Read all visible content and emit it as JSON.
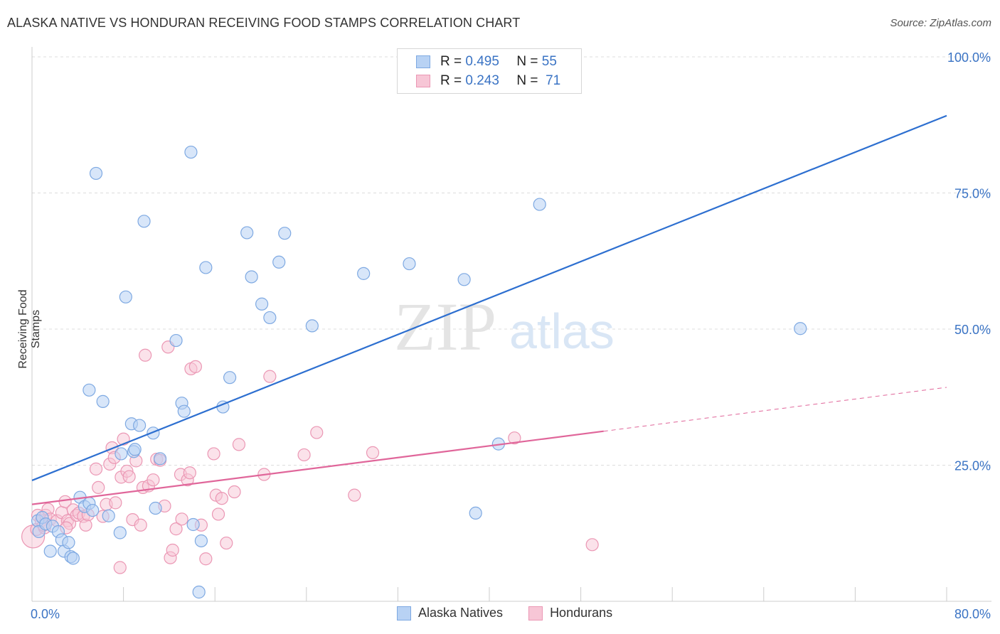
{
  "title": "ALASKA NATIVE VS HONDURAN RECEIVING FOOD STAMPS CORRELATION CHART",
  "source": "Source: ZipAtlas.com",
  "watermark": {
    "zip": "ZIP",
    "atlas": "atlas"
  },
  "legend_stats": [
    {
      "r_label": "R =",
      "r_value": "0.495",
      "n_label": "N =",
      "n_value": "55"
    },
    {
      "r_label": "R =",
      "r_value": "0.243",
      "n_label": "N =",
      "n_value": "71"
    }
  ],
  "colors": {
    "alaska_fill": "#b8d2f4",
    "alaska_stroke": "#7ea9e2",
    "alaska_line": "#2d6fd0",
    "honduran_fill": "#f7c6d6",
    "honduran_stroke": "#eb97b4",
    "honduran_line": "#e0669a",
    "axis_blue": "#3a73c4",
    "grid": "#dddddd"
  },
  "chart_data": {
    "type": "scatter",
    "title": "ALASKA NATIVE VS HONDURAN RECEIVING FOOD STAMPS CORRELATION CHART",
    "xlabel": "",
    "ylabel": "Receiving Food Stamps",
    "xlim": [
      0,
      80
    ],
    "ylim": [
      0,
      100
    ],
    "x_tick_labels": [
      "0.0%",
      "80.0%"
    ],
    "y_tick_labels": [
      "100.0%",
      "75.0%",
      "50.0%",
      "25.0%"
    ],
    "y_ticks": [
      100,
      75,
      50,
      25
    ],
    "grid": true,
    "legend_position": "bottom-center",
    "series": [
      {
        "name": "Alaska Natives",
        "r": 0.495,
        "n": 55,
        "trend": {
          "x": [
            0,
            80
          ],
          "y": [
            22.2,
            89.2
          ],
          "dashed_after": null
        },
        "points": [
          [
            0.5,
            14.8
          ],
          [
            0.6,
            12.8
          ],
          [
            0.9,
            15.4
          ],
          [
            1.2,
            14.2
          ],
          [
            1.6,
            9.2
          ],
          [
            1.8,
            13.8
          ],
          [
            2.3,
            12.8
          ],
          [
            2.6,
            11.3
          ],
          [
            2.8,
            9.2
          ],
          [
            3.2,
            10.8
          ],
          [
            3.4,
            8.2
          ],
          [
            3.6,
            7.9
          ],
          [
            4.2,
            19.1
          ],
          [
            4.6,
            17.4
          ],
          [
            5.0,
            18.0
          ],
          [
            5.3,
            16.7
          ],
          [
            5.6,
            78.6
          ],
          [
            6.2,
            36.7
          ],
          [
            6.7,
            15.7
          ],
          [
            7.7,
            12.6
          ],
          [
            8.2,
            55.9
          ],
          [
            8.7,
            32.6
          ],
          [
            8.9,
            27.5
          ],
          [
            9.0,
            27.9
          ],
          [
            9.4,
            32.3
          ],
          [
            9.8,
            69.8
          ],
          [
            10.6,
            30.9
          ],
          [
            10.8,
            17.1
          ],
          [
            11.2,
            26.2
          ],
          [
            12.6,
            47.9
          ],
          [
            13.1,
            36.4
          ],
          [
            13.3,
            34.9
          ],
          [
            13.9,
            82.5
          ],
          [
            14.1,
            14.1
          ],
          [
            14.6,
            1.7
          ],
          [
            14.8,
            11.1
          ],
          [
            15.2,
            61.3
          ],
          [
            16.7,
            35.7
          ],
          [
            17.3,
            41.1
          ],
          [
            18.8,
            67.7
          ],
          [
            19.2,
            59.6
          ],
          [
            20.1,
            54.6
          ],
          [
            20.8,
            52.1
          ],
          [
            21.6,
            62.3
          ],
          [
            22.1,
            67.6
          ],
          [
            24.5,
            50.6
          ],
          [
            29.0,
            60.2
          ],
          [
            33.0,
            62.0
          ],
          [
            37.8,
            59.1
          ],
          [
            38.8,
            16.2
          ],
          [
            40.8,
            28.9
          ],
          [
            44.4,
            72.9
          ],
          [
            67.2,
            50.1
          ],
          [
            5.0,
            38.8
          ],
          [
            7.8,
            27.1
          ]
        ]
      },
      {
        "name": "Hondurans",
        "r": 0.243,
        "n": 71,
        "trend": {
          "x": [
            0,
            80
          ],
          "y": [
            17.8,
            39.3
          ],
          "dashed_after": 50
        },
        "points": [
          [
            0.1,
            11.9
          ],
          [
            0.4,
            13.2
          ],
          [
            0.5,
            15.8
          ],
          [
            0.8,
            14.8
          ],
          [
            1.1,
            13.5
          ],
          [
            1.2,
            15.8
          ],
          [
            1.4,
            16.9
          ],
          [
            1.6,
            15.1
          ],
          [
            2.2,
            14.8
          ],
          [
            2.6,
            16.3
          ],
          [
            2.9,
            18.3
          ],
          [
            3.1,
            14.8
          ],
          [
            3.3,
            14.3
          ],
          [
            3.6,
            16.8
          ],
          [
            3.9,
            15.8
          ],
          [
            4.1,
            16.2
          ],
          [
            4.5,
            15.6
          ],
          [
            4.7,
            14.0
          ],
          [
            4.9,
            15.9
          ],
          [
            5.6,
            24.3
          ],
          [
            5.8,
            20.9
          ],
          [
            6.2,
            15.6
          ],
          [
            6.5,
            17.8
          ],
          [
            6.8,
            25.2
          ],
          [
            7.0,
            28.2
          ],
          [
            7.2,
            26.4
          ],
          [
            7.3,
            18.1
          ],
          [
            7.7,
            6.2
          ],
          [
            7.8,
            22.8
          ],
          [
            8.0,
            29.8
          ],
          [
            8.3,
            23.9
          ],
          [
            8.5,
            22.9
          ],
          [
            8.8,
            15.0
          ],
          [
            9.1,
            25.8
          ],
          [
            9.5,
            14.0
          ],
          [
            9.7,
            20.9
          ],
          [
            9.9,
            45.2
          ],
          [
            10.2,
            21.2
          ],
          [
            10.6,
            22.3
          ],
          [
            10.9,
            26.1
          ],
          [
            11.2,
            25.9
          ],
          [
            11.6,
            17.5
          ],
          [
            11.9,
            46.7
          ],
          [
            12.1,
            8.0
          ],
          [
            12.3,
            9.4
          ],
          [
            12.6,
            13.3
          ],
          [
            13.0,
            23.3
          ],
          [
            13.1,
            15.1
          ],
          [
            13.6,
            22.3
          ],
          [
            13.8,
            23.6
          ],
          [
            13.9,
            42.7
          ],
          [
            14.3,
            43.1
          ],
          [
            14.8,
            14.0
          ],
          [
            15.2,
            7.8
          ],
          [
            15.9,
            27.1
          ],
          [
            16.1,
            19.5
          ],
          [
            16.3,
            16.0
          ],
          [
            16.6,
            18.9
          ],
          [
            17.0,
            10.7
          ],
          [
            17.7,
            20.1
          ],
          [
            18.1,
            28.8
          ],
          [
            20.3,
            23.3
          ],
          [
            20.8,
            41.3
          ],
          [
            23.8,
            26.9
          ],
          [
            24.9,
            31.0
          ],
          [
            28.2,
            19.5
          ],
          [
            29.8,
            27.3
          ],
          [
            42.2,
            30.0
          ],
          [
            49.0,
            10.4
          ],
          [
            1.0,
            14.0
          ],
          [
            3.0,
            13.5
          ]
        ]
      }
    ]
  }
}
